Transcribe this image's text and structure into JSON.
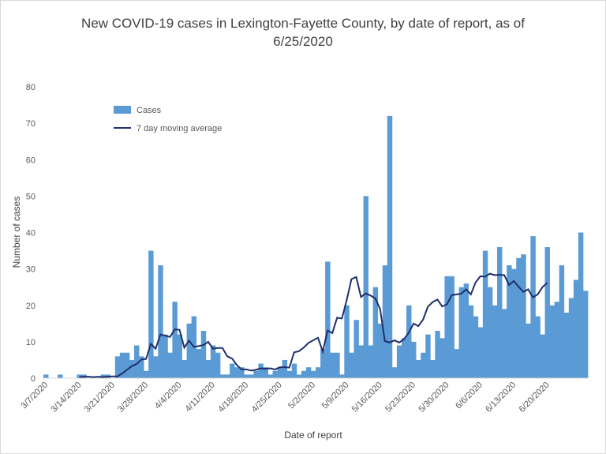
{
  "chart_data": {
    "type": "bar",
    "title": "New COVID-19 cases in Lexington-Fayette County, by date of report, as of 6/25/2020",
    "xlabel": "Date of report",
    "ylabel": "Number of cases",
    "ylim": [
      0,
      80
    ],
    "yticks": [
      0,
      10,
      20,
      30,
      40,
      50,
      60,
      70,
      80
    ],
    "x_tick_labels": [
      "3/7/2020",
      "3/14/2020",
      "3/21/2020",
      "3/28/2020",
      "4/4/2020",
      "4/11/2020",
      "4/18/2020",
      "4/25/2020",
      "5/2/2020",
      "5/9/2020",
      "5/16/2020",
      "5/23/2020",
      "5/30/2020",
      "6/6/2020",
      "6/13/2020",
      "6/20/2020"
    ],
    "grid": false,
    "legend_position": "top-left",
    "colors": {
      "bars": "#5b9bd5",
      "line": "#1f2f6b"
    },
    "start_date": "3/7/2020",
    "series": [
      {
        "name": "Cases",
        "kind": "bar",
        "values": [
          1,
          0,
          0,
          1,
          0,
          0,
          0,
          1,
          1,
          0,
          0,
          0,
          1,
          1,
          0,
          6,
          7,
          7,
          5,
          9,
          6,
          2,
          35,
          6,
          31,
          12,
          7,
          21,
          12,
          5,
          15,
          17,
          8,
          13,
          5,
          9,
          7,
          1,
          1,
          4,
          3,
          3,
          1,
          1,
          2,
          4,
          3,
          1,
          2,
          3,
          5,
          2,
          4,
          1,
          2,
          3,
          2,
          3,
          8,
          32,
          7,
          7,
          1,
          20,
          7,
          16,
          9,
          50,
          9,
          25,
          15,
          31,
          72,
          3,
          9,
          11,
          20,
          10,
          5,
          7,
          12,
          5,
          13,
          11,
          28,
          28,
          8,
          25,
          26,
          20,
          17,
          14,
          35,
          25,
          20,
          36,
          19,
          31,
          30,
          33,
          34,
          15,
          39,
          17,
          12,
          36,
          20,
          21,
          31,
          18,
          22,
          27,
          40,
          24
        ]
      },
      {
        "name": "7 day moving average",
        "kind": "line",
        "start_index": 7,
        "values": [
          0.3,
          0.4,
          0.4,
          0.3,
          0.4,
          0.3,
          0.4,
          0.5,
          0.5,
          1.3,
          2.3,
          3.3,
          3.9,
          5.1,
          5.3,
          9.4,
          8.1,
          12.0,
          11.7,
          11.3,
          13.4,
          13.3,
          8.4,
          10.3,
          8.6,
          8.8,
          9.1,
          10.0,
          8.1,
          8.3,
          8.3,
          6.0,
          5.4,
          3.6,
          2.4,
          2.4,
          2.1,
          2.3,
          2.7,
          2.6,
          2.7,
          2.4,
          3.0,
          3.0,
          2.9,
          7.1,
          7.4,
          8.4,
          9.7,
          10.4,
          11.1,
          7.3,
          13.1,
          12.4,
          16.6,
          16.4,
          21.4,
          27.2,
          27.8,
          22.3,
          23.3,
          22.7,
          21.9,
          19.0,
          10.2,
          9.8,
          10.4,
          9.8,
          10.7,
          12.5,
          15.0,
          14.3,
          16.1,
          19.6,
          20.9,
          21.6,
          19.7,
          20.3,
          22.8,
          23.0,
          23.2,
          24.4,
          23.0,
          26.3,
          28.0,
          27.9,
          28.7,
          28.3,
          28.4,
          28.3,
          25.6,
          26.7,
          25.1,
          23.7,
          24.4,
          22.2,
          23.0,
          25.0,
          26.2
        ]
      }
    ]
  }
}
